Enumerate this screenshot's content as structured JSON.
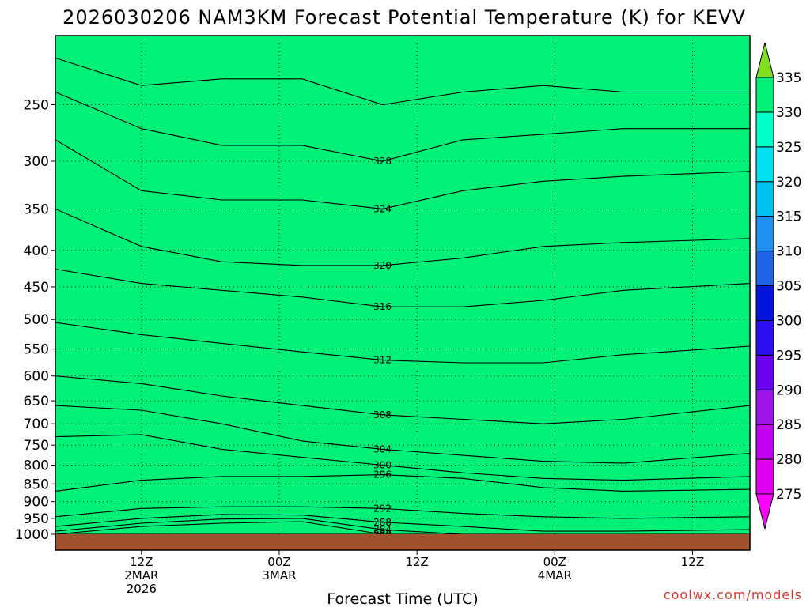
{
  "title": "2026030206 NAM3KM Forecast Potential Temperature (K) for KEVV",
  "credit": "coolwx.com/models",
  "chart_data": {
    "type": "heatmap",
    "title": "2026030206 NAM3KM Forecast Potential Temperature (K) for KEVV",
    "xlabel": "Forecast Time (UTC)",
    "ylabel": "",
    "x_ticks": [
      {
        "hour": 6,
        "lines": [
          "12Z",
          "2MAR",
          "2026"
        ]
      },
      {
        "hour": 18,
        "lines": [
          "00Z",
          "3MAR"
        ]
      },
      {
        "hour": 30,
        "lines": [
          "12Z"
        ]
      },
      {
        "hour": 42,
        "lines": [
          "00Z",
          "4MAR"
        ]
      },
      {
        "hour": 54,
        "lines": [
          "12Z"
        ]
      }
    ],
    "xlim": [
      -1.5,
      59
    ],
    "y_ticks": [
      "250",
      "300",
      "350",
      "400",
      "450",
      "500",
      "550",
      "600",
      "650",
      "700",
      "750",
      "800",
      "850",
      "900",
      "950",
      "1000"
    ],
    "y_tick_values": [
      250,
      300,
      350,
      400,
      450,
      500,
      550,
      600,
      650,
      700,
      750,
      800,
      850,
      900,
      950,
      1000
    ],
    "ylim": [
      200,
      1000
    ],
    "y_scale": "log-pressure",
    "grid": "dotted",
    "surface_color": "#a0522d",
    "colorbar": {
      "ticks": [
        "275",
        "280",
        "285",
        "290",
        "295",
        "300",
        "305",
        "310",
        "315",
        "320",
        "325",
        "330",
        "335"
      ],
      "bands": [
        {
          "min": 270,
          "max": 275,
          "color": "#ff00ff"
        },
        {
          "min": 275,
          "max": 280,
          "color": "#e000f0"
        },
        {
          "min": 280,
          "max": 285,
          "color": "#c000ee"
        },
        {
          "min": 285,
          "max": 290,
          "color": "#9c14ea"
        },
        {
          "min": 290,
          "max": 295,
          "color": "#6a00f0"
        },
        {
          "min": 295,
          "max": 300,
          "color": "#2a10f0"
        },
        {
          "min": 300,
          "max": 305,
          "color": "#0014dc"
        },
        {
          "min": 305,
          "max": 310,
          "color": "#1e64e6"
        },
        {
          "min": 310,
          "max": 315,
          "color": "#1e90f0"
        },
        {
          "min": 315,
          "max": 320,
          "color": "#00c0f0"
        },
        {
          "min": 320,
          "max": 325,
          "color": "#00e0f0"
        },
        {
          "min": 325,
          "max": 330,
          "color": "#00ffc8"
        },
        {
          "min": 330,
          "max": 335,
          "color": "#00f078"
        },
        {
          "min": 335,
          "max": 340,
          "color": "#00e040"
        },
        {
          "min": 340,
          "max": 345,
          "color": "#80e020"
        }
      ]
    },
    "isentropes": [
      {
        "theta": 276,
        "pressure": [
          1000,
          1000,
          1000,
          1000,
          1000,
          1000,
          1000,
          1000,
          1000
        ],
        "label": "276"
      },
      {
        "theta": 280,
        "pressure": [
          1000,
          975,
          965,
          960,
          1000,
          1000,
          1000,
          1000,
          1000
        ],
        "label": "280"
      },
      {
        "theta": 284,
        "pressure": [
          990,
          965,
          952,
          950,
          985,
          1000,
          1000,
          1000,
          1000
        ],
        "label": "284"
      },
      {
        "theta": 288,
        "pressure": [
          975,
          950,
          938,
          940,
          962,
          975,
          990,
          990,
          985
        ],
        "label": "288"
      },
      {
        "theta": 292,
        "pressure": [
          945,
          920,
          915,
          915,
          920,
          935,
          945,
          950,
          945
        ],
        "label": "292"
      },
      {
        "theta": 296,
        "pressure": [
          870,
          840,
          830,
          830,
          825,
          835,
          860,
          870,
          865
        ],
        "label": "296"
      },
      {
        "theta": 300,
        "pressure": [
          730,
          725,
          760,
          780,
          800,
          820,
          835,
          840,
          830
        ],
        "label": "300"
      },
      {
        "theta": 304,
        "pressure": [
          660,
          670,
          700,
          740,
          760,
          775,
          790,
          795,
          770
        ],
        "label": "304"
      },
      {
        "theta": 308,
        "pressure": [
          600,
          615,
          640,
          660,
          680,
          690,
          700,
          690,
          660
        ],
        "label": "308"
      },
      {
        "theta": 312,
        "pressure": [
          505,
          525,
          540,
          555,
          570,
          575,
          575,
          560,
          545
        ],
        "label": "312"
      },
      {
        "theta": 316,
        "pressure": [
          425,
          445,
          455,
          465,
          480,
          480,
          470,
          455,
          445
        ],
        "label": "316"
      },
      {
        "theta": 320,
        "pressure": [
          350,
          395,
          415,
          420,
          420,
          410,
          395,
          390,
          385
        ],
        "label": "320"
      },
      {
        "theta": 324,
        "pressure": [
          280,
          330,
          340,
          340,
          350,
          330,
          320,
          315,
          310
        ],
        "label": "324"
      },
      {
        "theta": 328,
        "pressure": [
          240,
          270,
          285,
          285,
          300,
          280,
          275,
          270,
          270
        ],
        "label": "328"
      },
      {
        "theta": 332,
        "pressure": [
          215,
          235,
          230,
          230,
          250,
          240,
          235,
          240,
          240
        ],
        "label": ""
      }
    ],
    "isentrope_hours": [
      -1.5,
      6,
      13,
      20,
      27,
      34,
      41,
      48,
      59
    ]
  }
}
